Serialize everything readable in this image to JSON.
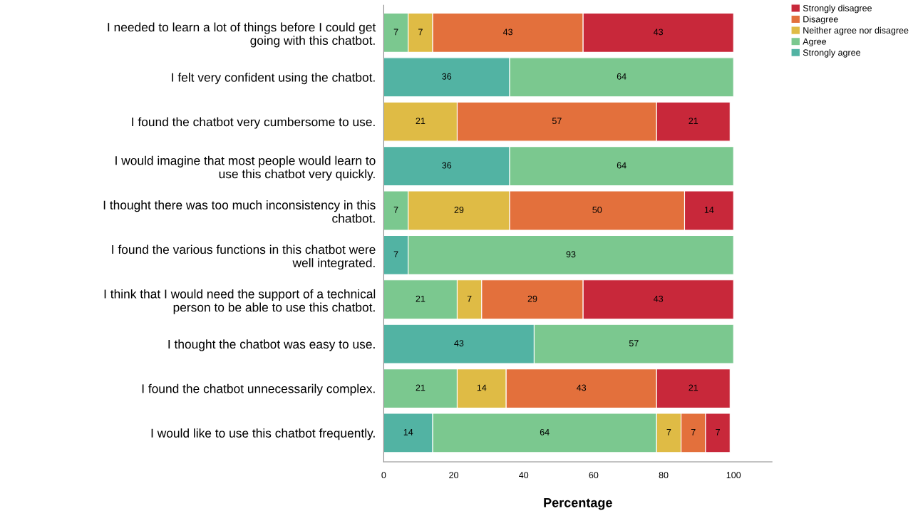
{
  "chart_data": {
    "type": "bar",
    "orientation": "horizontal",
    "stacked": true,
    "data_labels": true,
    "grid": false,
    "legend": "top right",
    "xlabel": "Percentage",
    "categories": [
      "I needed to learn a lot of things before I could get\ngoing with this chatbot.",
      "I felt very confident using the chatbot.",
      "I found the chatbot very cumbersome to use.",
      "I would imagine that most people would learn to\nuse this chatbot very quickly.",
      "I thought there was too much inconsistency in this\nchatbot.",
      "I found the various functions in this chatbot were\nwell integrated.",
      "I think that I would need the support of a technical\nperson to be able to use this chatbot.",
      "I thought the chatbot was easy to use.",
      "I found the chatbot unnecessarily complex.",
      "I would like to use this chatbot frequently."
    ],
    "xlim": [
      0,
      111
    ],
    "xticks": [
      0,
      20,
      40,
      60,
      80,
      100
    ],
    "series": [
      {
        "name": "Strongly agree",
        "color": "#52b3a3",
        "values": [
          null,
          36,
          null,
          36,
          null,
          7,
          null,
          43,
          null,
          14
        ]
      },
      {
        "name": "Agree",
        "color": "#7bc88f",
        "values": [
          7,
          64,
          null,
          64,
          7,
          93,
          21,
          57,
          21,
          64
        ]
      },
      {
        "name": "Neither agree nor disagree",
        "color": "#dfbb45",
        "values": [
          7,
          null,
          21,
          null,
          29,
          null,
          7,
          null,
          14,
          7
        ]
      },
      {
        "name": "Disagree",
        "color": "#e3703c",
        "values": [
          43,
          null,
          57,
          null,
          50,
          null,
          29,
          null,
          43,
          7
        ]
      },
      {
        "name": "Strongly disagree",
        "color": "#c8283a",
        "values": [
          43,
          null,
          21,
          null,
          14,
          null,
          43,
          null,
          21,
          7
        ]
      }
    ]
  }
}
